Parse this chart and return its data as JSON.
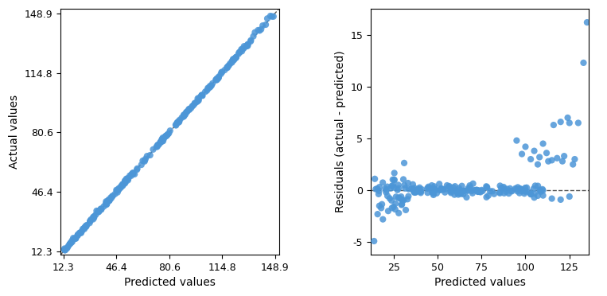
{
  "left_plot": {
    "xlabel": "Predicted values",
    "ylabel": "Actual values",
    "xlim": [
      10.5,
      151.5
    ],
    "ylim": [
      10.5,
      151.5
    ],
    "xticks": [
      12.3,
      46.4,
      80.6,
      114.8,
      148.9
    ],
    "yticks": [
      12.3,
      46.4,
      80.6,
      114.8,
      148.9
    ],
    "xtick_labels": [
      "12.3",
      "46.4",
      "80.6",
      "114.8",
      "148.9"
    ],
    "ytick_labels": [
      "12.3",
      "46.4",
      "80.6",
      "114.8",
      "148.9"
    ],
    "scatter_color": "#4C96D7",
    "line_color": "#555555",
    "line_style": "--"
  },
  "right_plot": {
    "xlabel": "Predicted values",
    "ylabel": "Residuals (actual - predicted)",
    "xlim": [
      12.0,
      136.0
    ],
    "ylim": [
      -6.2,
      17.5
    ],
    "xticks": [
      25,
      50,
      75,
      100,
      125
    ],
    "yticks": [
      -5,
      0,
      5,
      10,
      15
    ],
    "xtick_labels": [
      "25",
      "50",
      "75",
      "100",
      "125"
    ],
    "ytick_labels": [
      "-5",
      "0",
      "5",
      "10",
      "15"
    ],
    "scatter_color": "#4C96D7",
    "line_color": "#555555",
    "line_style": "--"
  },
  "scatter_alpha": 0.85,
  "scatter_size": 35,
  "figsize": [
    7.63,
    3.72
  ],
  "dpi": 100,
  "seed": 42
}
